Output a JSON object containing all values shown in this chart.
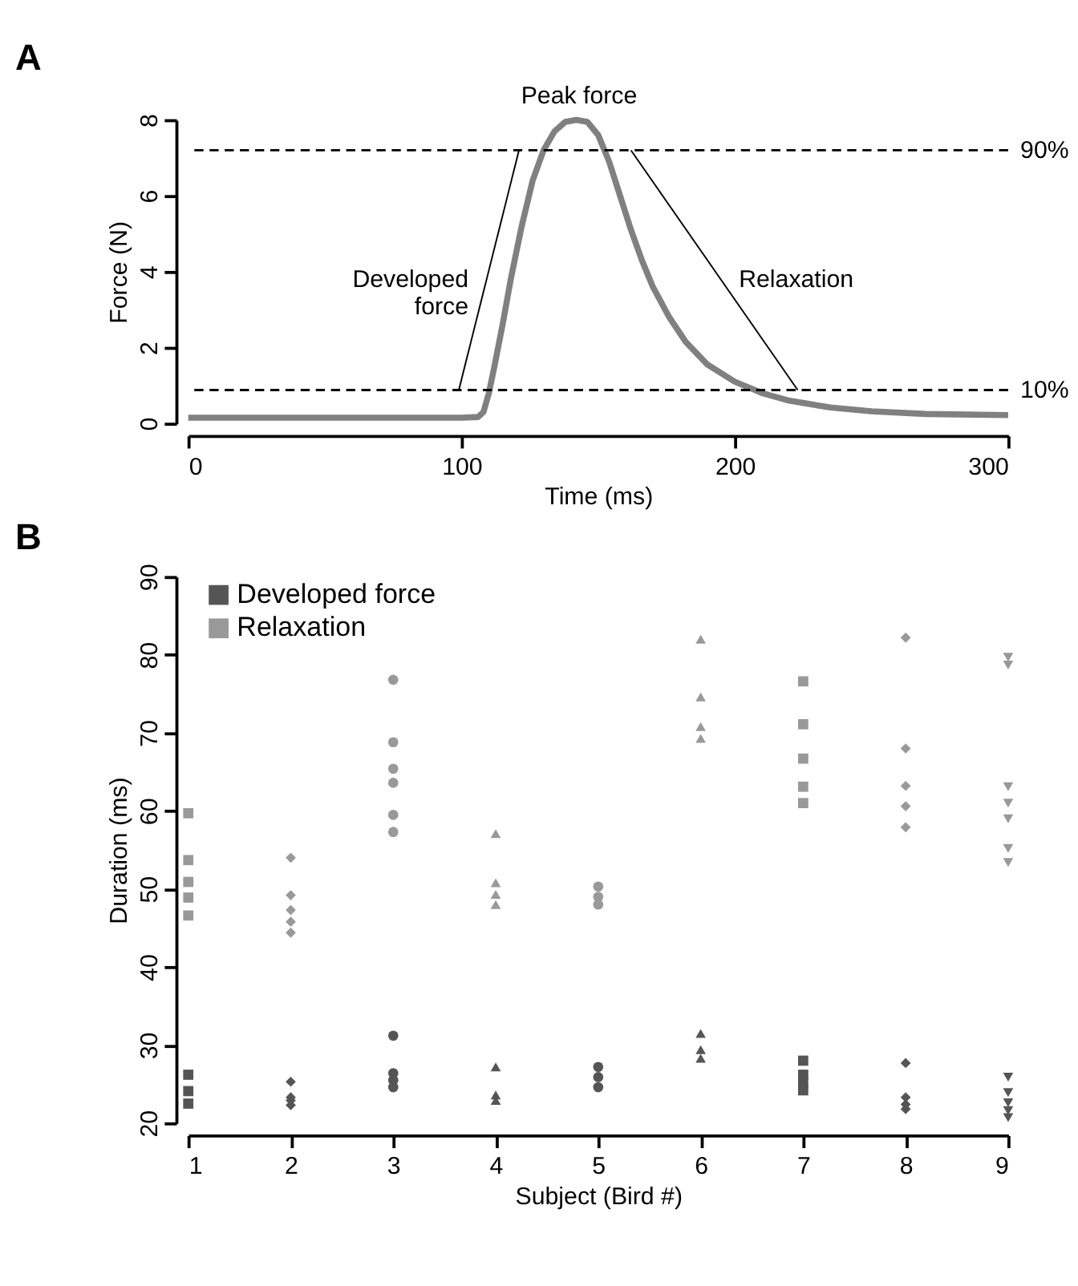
{
  "chart_data": [
    {
      "type": "line",
      "title": "A",
      "xlabel": "Time (ms)",
      "ylabel": "Force (N)",
      "xlim": [
        0,
        300
      ],
      "ylim": [
        0,
        8
      ],
      "xticks": [
        0,
        100,
        200,
        300
      ],
      "yticks": [
        0,
        2,
        4,
        6,
        8
      ],
      "grid": false,
      "series": [
        {
          "color": "#808080",
          "x": [
            0,
            50,
            100,
            106,
            108,
            110,
            112,
            115,
            118,
            122,
            126,
            130,
            134,
            138,
            142,
            146,
            150,
            154,
            158,
            162,
            166,
            170,
            176,
            182,
            190,
            200,
            210,
            220,
            235,
            250,
            270,
            300
          ],
          "values": [
            0.15,
            0.15,
            0.15,
            0.17,
            0.3,
            0.8,
            1.5,
            2.6,
            3.8,
            5.2,
            6.4,
            7.2,
            7.7,
            7.95,
            8.0,
            7.95,
            7.6,
            6.9,
            6.0,
            5.1,
            4.3,
            3.6,
            2.8,
            2.15,
            1.55,
            1.1,
            0.8,
            0.6,
            0.42,
            0.32,
            0.25,
            0.22
          ]
        },
        {
          "color": "#000000",
          "x": [
            99,
            121
          ],
          "values": [
            0.88,
            7.2
          ]
        },
        {
          "color": "#000000",
          "x": [
            162,
            223
          ],
          "values": [
            7.2,
            0.88
          ]
        }
      ],
      "ref_lines": [
        {
          "axis": "y",
          "value": 7.2,
          "color": "#000000",
          "line_style": "dashed"
        },
        {
          "axis": "y",
          "value": 0.88,
          "color": "#000000",
          "line_style": "dashed"
        }
      ],
      "annotations": [
        {
          "text": "Peak force",
          "x": 143,
          "y": 8
        },
        {
          "text": "Developed\nforce",
          "x": 109.2,
          "y": 3.8
        },
        {
          "text": "Relaxation",
          "x": 194.8,
          "y": 3.8
        },
        {
          "text": "90%",
          "x": 300,
          "y": 7.2
        },
        {
          "text": "10%",
          "x": 300,
          "y": 0.88
        }
      ]
    },
    {
      "type": "scatter",
      "title": "B",
      "xlabel": "Subject (Bird #)",
      "ylabel": "Duration (ms)",
      "xlim": [
        1,
        9
      ],
      "ylim": [
        20,
        90
      ],
      "xticks": [
        1,
        2,
        3,
        4,
        5,
        6,
        7,
        8,
        9
      ],
      "yticks": [
        20,
        30,
        40,
        50,
        60,
        70,
        80,
        90
      ],
      "grid": false,
      "legend": "top left",
      "marker": [
        "square",
        "diamond",
        "circle",
        "triangle",
        "circle",
        "triangle",
        "square",
        "diamond",
        "triangle-down"
      ],
      "series": [
        {
          "name": "Developed force",
          "color": "#555555",
          "x": [
            1,
            1,
            1,
            2,
            2,
            2,
            2,
            3,
            3,
            3,
            3,
            4,
            4,
            4,
            5,
            5,
            5,
            6,
            6,
            6,
            7,
            7,
            7,
            7,
            8,
            8,
            8,
            8,
            9,
            9,
            9,
            9,
            9
          ],
          "values": [
            26.2,
            24.1,
            22.5,
            25.3,
            23.3,
            22.9,
            22.3,
            31.2,
            26.4,
            25.5,
            24.6,
            27.2,
            23.6,
            22.9,
            27.2,
            25.9,
            24.6,
            31.5,
            29.4,
            28.3,
            28.0,
            26.2,
            25.2,
            24.2,
            27.7,
            23.3,
            22.4,
            21.8,
            25.9,
            23.9,
            22.6,
            21.6,
            20.7
          ]
        },
        {
          "name": "Relaxation",
          "color": "#999999",
          "x": [
            1,
            1,
            1,
            1,
            1,
            2,
            2,
            2,
            2,
            2,
            3,
            3,
            3,
            3,
            3,
            3,
            4,
            4,
            4,
            4,
            5,
            5,
            5,
            6,
            6,
            6,
            6,
            7,
            7,
            7,
            7,
            7,
            8,
            8,
            8,
            8,
            8,
            9,
            9,
            9,
            9,
            9,
            9,
            9
          ],
          "values": [
            59.7,
            53.7,
            50.9,
            48.9,
            46.6,
            54.0,
            49.2,
            47.3,
            45.8,
            44.4,
            76.8,
            68.8,
            65.4,
            63.6,
            59.5,
            57.3,
            57.1,
            50.8,
            49.3,
            48.0,
            50.3,
            49.0,
            48.0,
            82.0,
            74.6,
            70.8,
            69.3,
            76.6,
            71.1,
            66.7,
            63.1,
            61.0,
            82.2,
            68.0,
            63.2,
            60.6,
            57.9,
            79.7,
            78.7,
            63.1,
            61.0,
            59.0,
            55.2,
            53.4
          ]
        }
      ]
    }
  ]
}
